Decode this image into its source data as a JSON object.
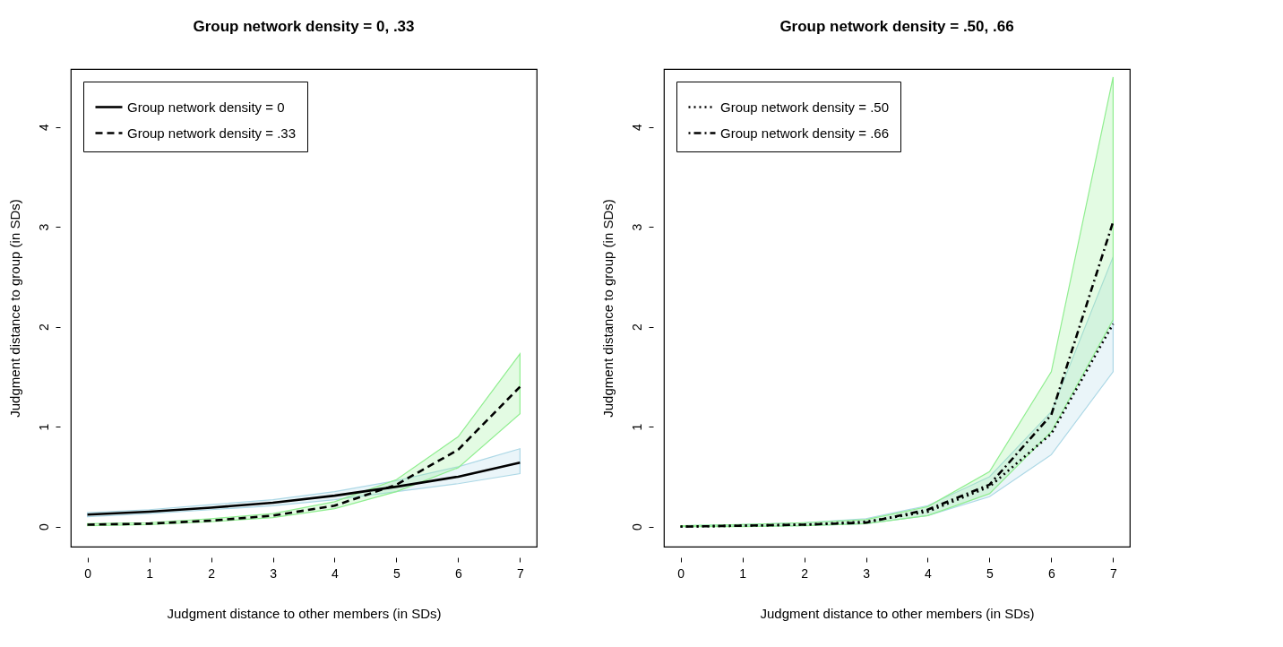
{
  "chart_data": [
    {
      "type": "line",
      "title": "Group network density = 0, .33",
      "xlabel": "Judgment distance to other members (in SDs)",
      "ylabel": "Judgment distance to group (in SDs)",
      "x": [
        0,
        1,
        2,
        3,
        4,
        5,
        6,
        7
      ],
      "xlim": [
        -0.27,
        7.27
      ],
      "ylim": [
        -0.2,
        4.58
      ],
      "xticks": [
        0,
        1,
        2,
        3,
        4,
        5,
        6,
        7
      ],
      "yticks": [
        0,
        1,
        2,
        3,
        4
      ],
      "grid": false,
      "legend": "top left",
      "colors": [
        "#add8e6",
        "#90ee90"
      ],
      "series": [
        {
          "name": "Group network density = 0",
          "color": "#000000",
          "line_style": "solid",
          "values": [
            0.12,
            0.15,
            0.19,
            0.24,
            0.31,
            0.4,
            0.5,
            0.64
          ],
          "lower": [
            0.1,
            0.13,
            0.17,
            0.21,
            0.27,
            0.35,
            0.43,
            0.53
          ],
          "upper": [
            0.14,
            0.17,
            0.22,
            0.27,
            0.35,
            0.46,
            0.6,
            0.78
          ]
        },
        {
          "name": "Group network density = .33",
          "color": "#000000",
          "line_style": "dashed",
          "values": [
            0.02,
            0.03,
            0.06,
            0.11,
            0.21,
            0.42,
            0.77,
            1.4
          ],
          "lower": [
            0.01,
            0.02,
            0.05,
            0.09,
            0.18,
            0.35,
            0.59,
            1.13
          ],
          "upper": [
            0.03,
            0.04,
            0.08,
            0.13,
            0.25,
            0.47,
            0.9,
            1.73
          ]
        }
      ]
    },
    {
      "type": "line",
      "title": "Group network density = .50, .66",
      "xlabel": "Judgment distance to other members (in SDs)",
      "ylabel": "Judgment distance to group (in SDs)",
      "x": [
        0,
        1,
        2,
        3,
        4,
        5,
        6,
        7
      ],
      "xlim": [
        -0.27,
        7.27
      ],
      "ylim": [
        -0.2,
        4.58
      ],
      "xticks": [
        0,
        1,
        2,
        3,
        4,
        5,
        6,
        7
      ],
      "yticks": [
        0,
        1,
        2,
        3,
        4
      ],
      "grid": false,
      "legend": "top left",
      "colors": [
        "#add8e6",
        "#90ee90"
      ],
      "series": [
        {
          "name": "Group network density = .50",
          "color": "#000000",
          "line_style": "dotted",
          "values": [
            0,
            0.01,
            0.02,
            0.05,
            0.15,
            0.4,
            0.93,
            2.03
          ],
          "lower": [
            0,
            0.005,
            0.01,
            0.03,
            0.11,
            0.3,
            0.72,
            1.55
          ],
          "upper": [
            0.01,
            0.02,
            0.04,
            0.08,
            0.21,
            0.5,
            1.15,
            2.7
          ]
        },
        {
          "name": "Group network density = .66",
          "color": "#000000",
          "line_style": "dashdot",
          "values": [
            0,
            0.01,
            0.02,
            0.04,
            0.17,
            0.42,
            1.12,
            3.05
          ],
          "lower": [
            0,
            0,
            0.01,
            0.03,
            0.11,
            0.33,
            0.95,
            2.07
          ],
          "upper": [
            0.01,
            0.02,
            0.04,
            0.07,
            0.2,
            0.55,
            1.55,
            4.5
          ]
        }
      ]
    }
  ]
}
